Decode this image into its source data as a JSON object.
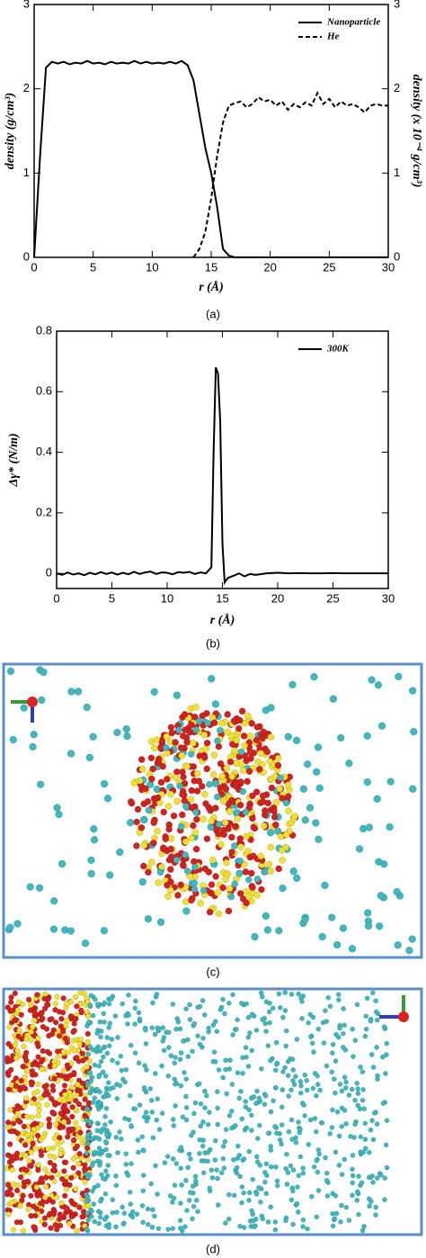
{
  "chart_data": [
    {
      "type": "line",
      "xlabel": "r (Å)",
      "ylabel": "density (g/cm³)",
      "y2label": "density (x 10⁻⁴ g/cm³)",
      "caption": "(a)",
      "xlim": [
        0,
        30
      ],
      "xticks": [
        0,
        5,
        10,
        15,
        20,
        25,
        30
      ],
      "ylim": [
        0,
        3
      ],
      "yticks": [
        0,
        1,
        2,
        3
      ],
      "y2lim": [
        0,
        3
      ],
      "y2ticks": [
        0,
        1,
        2,
        3
      ],
      "legend": "upper right",
      "series": [
        {
          "name": "Nanoparticle",
          "color": "#000000",
          "linestyle": "solid",
          "x": [
            0,
            0.5,
            1,
            1.5,
            2,
            2.5,
            3,
            3.5,
            4,
            4.5,
            5,
            5.5,
            6,
            6.5,
            7,
            7.5,
            8,
            8.5,
            9,
            9.5,
            10,
            10.5,
            11,
            11.5,
            12,
            12.5,
            13,
            13.5,
            14,
            14.5,
            15,
            15.5,
            16,
            16.5,
            17,
            20,
            25,
            30
          ],
          "values": [
            0,
            1.2,
            2.25,
            2.32,
            2.3,
            2.32,
            2.29,
            2.31,
            2.3,
            2.33,
            2.3,
            2.31,
            2.29,
            2.32,
            2.3,
            2.31,
            2.3,
            2.33,
            2.3,
            2.32,
            2.3,
            2.31,
            2.3,
            2.32,
            2.3,
            2.33,
            2.28,
            2.1,
            1.7,
            1.3,
            1.0,
            0.6,
            0.1,
            0.02,
            0,
            0,
            0,
            0
          ]
        },
        {
          "name": "He",
          "color": "#000000",
          "linestyle": "dashed",
          "axis": "y2",
          "x": [
            13.5,
            14,
            14.5,
            15,
            15.5,
            16,
            16.5,
            17,
            17.5,
            18,
            18.5,
            19,
            19.5,
            20,
            20.5,
            21,
            21.5,
            22,
            22.5,
            23,
            23.5,
            24,
            24.5,
            25,
            25.5,
            26,
            26.5,
            27,
            27.5,
            28,
            28.5,
            29,
            29.5,
            30
          ],
          "values": [
            0,
            0.1,
            0.3,
            0.7,
            1.2,
            1.6,
            1.8,
            1.83,
            1.85,
            1.78,
            1.82,
            1.9,
            1.85,
            1.87,
            1.8,
            1.85,
            1.75,
            1.82,
            1.78,
            1.84,
            1.8,
            1.95,
            1.82,
            1.88,
            1.78,
            1.85,
            1.8,
            1.82,
            1.78,
            1.72,
            1.8,
            1.82,
            1.8,
            1.8
          ]
        }
      ]
    },
    {
      "type": "line",
      "xlabel": "r (Å)",
      "ylabel": "Δγ* (N/m)",
      "caption": "(b)",
      "xlim": [
        0,
        30
      ],
      "xticks": [
        0,
        5,
        10,
        15,
        20,
        25,
        30
      ],
      "ylim": [
        -0.05,
        0.8
      ],
      "yticks": [
        0,
        0.2,
        0.4,
        0.6,
        0.8
      ],
      "legend": "upper right",
      "series": [
        {
          "name": "300K",
          "color": "#000000",
          "linestyle": "solid",
          "x": [
            0,
            0.5,
            1,
            1.5,
            2,
            2.5,
            3,
            3.5,
            4,
            4.5,
            5,
            5.5,
            6,
            6.5,
            7,
            7.5,
            8,
            8.5,
            9,
            9.5,
            10,
            10.5,
            11,
            11.5,
            12,
            12.5,
            13,
            13.5,
            14,
            14.2,
            14.4,
            14.6,
            14.8,
            15,
            15.2,
            15.5,
            16,
            16.5,
            17,
            17.5,
            18,
            19,
            20,
            21,
            22,
            23,
            24,
            25,
            26,
            27,
            28,
            29,
            30
          ],
          "values": [
            0,
            -0.005,
            0.003,
            -0.004,
            0,
            -0.006,
            0.002,
            -0.003,
            0.004,
            -0.002,
            0.003,
            -0.004,
            0.002,
            -0.003,
            0.005,
            -0.002,
            0.003,
            0.006,
            -0.002,
            0.003,
            0.002,
            -0.003,
            0.004,
            0.002,
            0.005,
            -0.002,
            0.003,
            0,
            0.02,
            0.4,
            0.68,
            0.66,
            0.5,
            0.1,
            -0.03,
            -0.015,
            -0.008,
            0,
            -0.01,
            -0.002,
            -0.005,
            0,
            0.002,
            0,
            0.001,
            0,
            0,
            0.001,
            0,
            0,
            0,
            0,
            0
          ]
        }
      ]
    }
  ],
  "panels": [
    {
      "caption": "(c)"
    },
    {
      "caption": "(d)"
    }
  ]
}
